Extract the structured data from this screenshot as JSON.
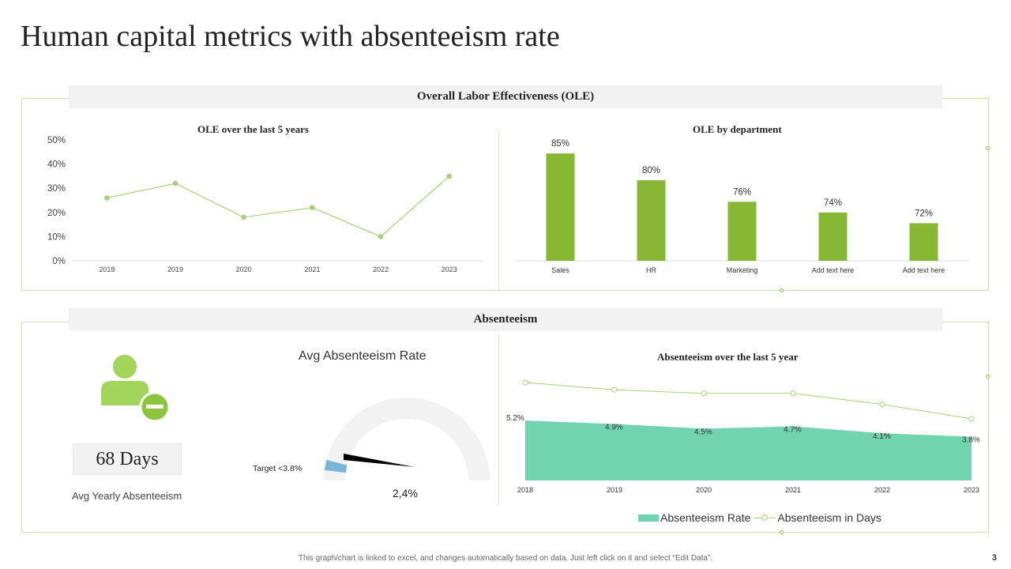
{
  "page": {
    "title": "Human capital metrics with absenteeism rate",
    "footer_note": "This graph/chart is linked to excel, and changes automatically based on data. Just left click on it and select “Edit Data”.",
    "page_number": "3"
  },
  "colors": {
    "accent_green": "#86b834",
    "line_green": "#a7d174",
    "area_teal": "#72d3b0",
    "gauge_needle_marker": "#7ab5d6",
    "panel_header_bg": "#f2f2f2"
  },
  "ole_section": {
    "header": "Overall Labor Effectiveness (OLE)"
  },
  "absenteeism_section": {
    "header": "Absenteeism",
    "person_icon": "user-minus-icon",
    "days_value": "68 Days",
    "days_caption": "Avg Yearly Absenteeism",
    "gauge": {
      "title": "Avg Absenteeism Rate",
      "target_label": "Target <3.8%",
      "value_label": "2,4%",
      "value": 2.4,
      "target": 3.8,
      "max": 10
    },
    "legend": {
      "area_label": "Absenteeism Rate",
      "line_label": "Absenteeism in Days"
    }
  },
  "chart_data": [
    {
      "id": "ole_years",
      "type": "line",
      "title": "OLE over the last 5 years",
      "x": [
        "2018",
        "2019",
        "2020",
        "2021",
        "2022",
        "2023"
      ],
      "values": [
        26,
        32,
        18,
        22,
        10,
        35
      ],
      "ylim": [
        0,
        50
      ],
      "yticks": [
        "0%",
        "10%",
        "20%",
        "30%",
        "40%",
        "50%"
      ],
      "xlabel": "",
      "ylabel": ""
    },
    {
      "id": "ole_dept",
      "type": "bar",
      "title": "OLE by department",
      "categories": [
        "Sales",
        "HR",
        "Marketing",
        "Add text here",
        "Add text here"
      ],
      "values": [
        85,
        80,
        76,
        74,
        72
      ],
      "labels": [
        "85%",
        "80%",
        "76%",
        "74%",
        "72%"
      ],
      "ylim": [
        65,
        86.2
      ]
    },
    {
      "id": "absenteeism_years",
      "type": "area",
      "title": "Absenteeism over the last 5 year",
      "x": [
        "2018",
        "2019",
        "2020",
        "2021",
        "2022",
        "2023"
      ],
      "series": [
        {
          "name": "Absenteeism Rate",
          "type": "area",
          "values": [
            5.2,
            4.9,
            4.5,
            4.7,
            4.1,
            3.8
          ],
          "labels": [
            "5.2%",
            "4.9%",
            "4.5%",
            "4.7%",
            "4.1%",
            "3.8%"
          ]
        },
        {
          "name": "Absenteeism in Days",
          "type": "line",
          "values": [
            68,
            66,
            65,
            65,
            62,
            58
          ]
        }
      ]
    }
  ]
}
